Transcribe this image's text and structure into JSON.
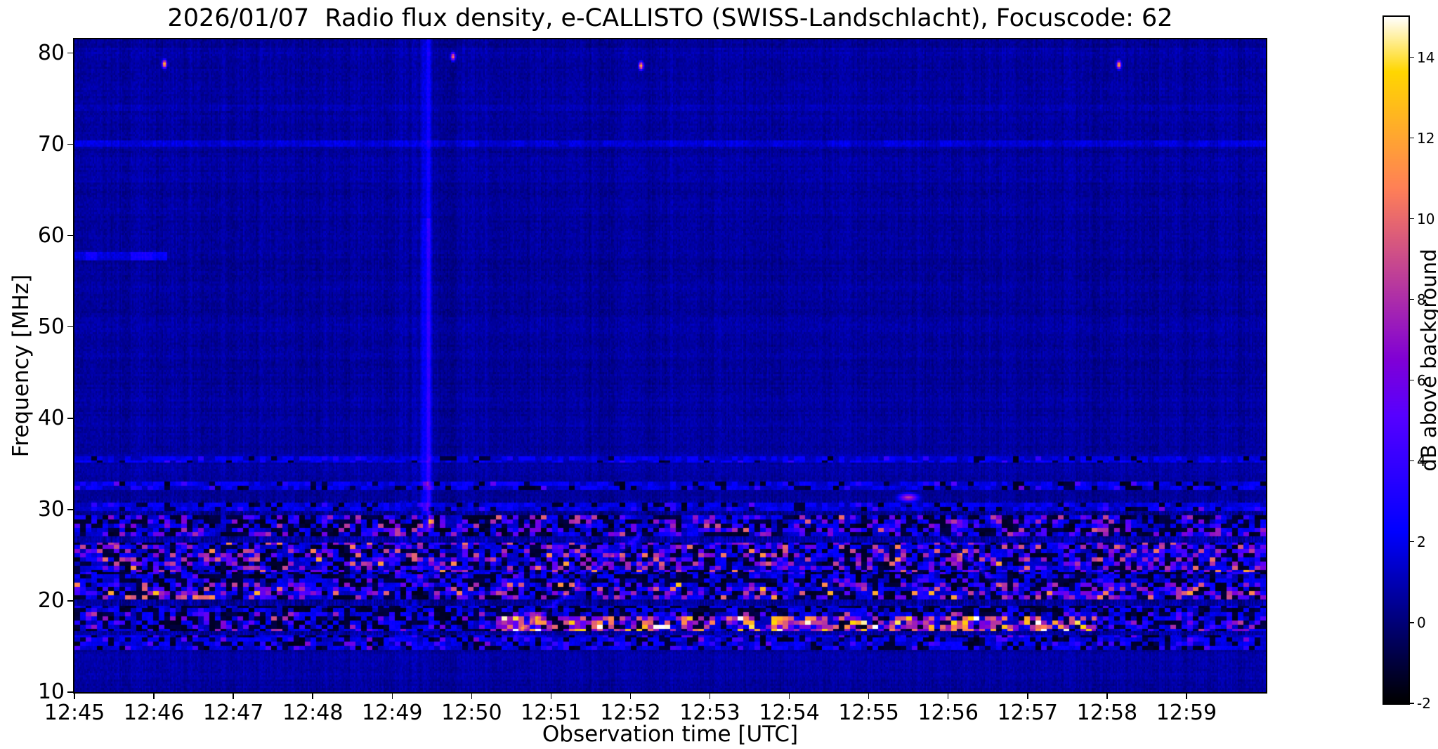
{
  "chart_data": {
    "type": "heatmap",
    "title": "2026/01/07  Radio flux density, e-CALLISTO (SWISS-Landschlacht), Focuscode: 62",
    "xlabel": "Observation time [UTC]",
    "ylabel": "Frequency [MHz]",
    "colorbar_label": "dB above background",
    "colormap": "gnuplot2",
    "time_start": "12:45",
    "time_end": "13:00",
    "duration_s": 900,
    "x_tick_labels": [
      "12:45",
      "12:46",
      "12:47",
      "12:48",
      "12:49",
      "12:50",
      "12:51",
      "12:52",
      "12:53",
      "12:54",
      "12:55",
      "12:56",
      "12:57",
      "12:58",
      "12:59"
    ],
    "x_tick_seconds": [
      0,
      60,
      120,
      180,
      240,
      300,
      360,
      420,
      480,
      540,
      600,
      660,
      720,
      780,
      840
    ],
    "freq_lim_mhz": [
      10,
      81.5
    ],
    "y_ticks_mhz": [
      10,
      20,
      30,
      40,
      50,
      60,
      70,
      80
    ],
    "db_lim": [
      -2,
      15
    ],
    "colorbar_ticks_db": [
      -2,
      0,
      2,
      4,
      6,
      8,
      10,
      12,
      14
    ],
    "background_db": 0.65,
    "grid": false,
    "rfi_bands": [
      {
        "f_lo": 27.1,
        "f_hi": 29.3,
        "black_frac": 0.38,
        "bright_frac": 0.3,
        "db_lo": 2.5,
        "db_hi": 9
      },
      {
        "f_lo": 23.2,
        "f_hi": 26.3,
        "black_frac": 0.3,
        "bright_frac": 0.33,
        "db_lo": 2.5,
        "db_hi": 10.5
      },
      {
        "f_lo": 20.2,
        "f_hi": 22.1,
        "black_frac": 0.3,
        "bright_frac": 0.33,
        "db_lo": 2.5,
        "db_hi": 11
      },
      {
        "f_lo": 16.6,
        "f_hi": 18.7,
        "black_frac": 0.42,
        "bright_frac": 0.22,
        "db_lo": 2,
        "db_hi": 8
      },
      {
        "f_lo": 14.7,
        "f_hi": 16.3,
        "black_frac": 0.3,
        "bright_frac": 0.15,
        "db_lo": 2,
        "db_hi": 6
      },
      {
        "f_lo": 18.7,
        "f_hi": 19.4,
        "black_frac": 0.55,
        "bright_frac": 0.06,
        "db_lo": 2,
        "db_hi": 4
      },
      {
        "f_lo": 22.1,
        "f_hi": 23.2,
        "black_frac": 0.45,
        "bright_frac": 0.12,
        "db_lo": 2,
        "db_hi": 6
      },
      {
        "f_lo": 29.8,
        "f_hi": 30.7,
        "black_frac": 0.18,
        "bright_frac": 0.08,
        "db_lo": 2,
        "db_hi": 5.5
      },
      {
        "f_lo": 32.1,
        "f_hi": 33.1,
        "black_frac": 0.15,
        "bright_frac": 0.07,
        "db_lo": 2,
        "db_hi": 5
      },
      {
        "f_lo": 35.2,
        "f_hi": 35.9,
        "black_frac": 0.1,
        "bright_frac": 0.04,
        "db_lo": 2,
        "db_hi": 4
      }
    ],
    "active_band": {
      "f_lo": 16.8,
      "f_hi": 18.4,
      "t_start_s": 318,
      "t_end_s": 772,
      "black_frac": 0.15,
      "bright_frac": 0.62,
      "db_lo": 5,
      "db_hi": 14.7
    },
    "vertical_streaks": [
      {
        "t_s": 267.5,
        "sigma_s": 1.6,
        "amp_db": 3.4,
        "f_lo": 27.5
      },
      {
        "t_s": 263.0,
        "sigma_s": 1.4,
        "amp_db": 1.4,
        "f_lo": 27.5
      }
    ],
    "point_bursts": [
      {
        "t_s": 68,
        "f_mhz": 78.8,
        "amp_db": 13.5
      },
      {
        "t_s": 286,
        "f_mhz": 79.6,
        "amp_db": 11
      },
      {
        "t_s": 428,
        "f_mhz": 78.6,
        "amp_db": 13
      },
      {
        "t_s": 789,
        "f_mhz": 78.7,
        "amp_db": 13
      }
    ],
    "blob": {
      "t_s": 630,
      "f_mhz": 31.3,
      "sigma_t_s": 5,
      "sigma_f_mhz": 0.3,
      "amp_db": 8.5
    },
    "drift_lines": [
      {
        "t0_s": 332,
        "f0_mhz": 16.2,
        "t1_s": 428,
        "f1_mhz": 27.2,
        "amp_db": 2.2,
        "width_mhz": 0.25
      },
      {
        "t0_s": 655,
        "f0_mhz": 27.0,
        "t1_s": 700,
        "f1_mhz": 21.5,
        "amp_db": 2.5,
        "width_mhz": 0.25
      }
    ],
    "horiz_lines": [
      {
        "f_lo": 69.8,
        "f_hi": 70.4,
        "amp_db": 0.8,
        "t0_s": 0,
        "t1_s": 900
      },
      {
        "f_lo": 57.2,
        "f_hi": 58.3,
        "amp_db": 1.6,
        "t0_s": 0,
        "t1_s": 70
      },
      {
        "f_lo": 73.6,
        "f_hi": 74.3,
        "amp_db": 0.35,
        "t0_s": 0,
        "t1_s": 900
      }
    ],
    "colors": {
      "figure_background": "#ffffff",
      "axis": "#000000",
      "plot_background_approx": "#00008a"
    }
  }
}
